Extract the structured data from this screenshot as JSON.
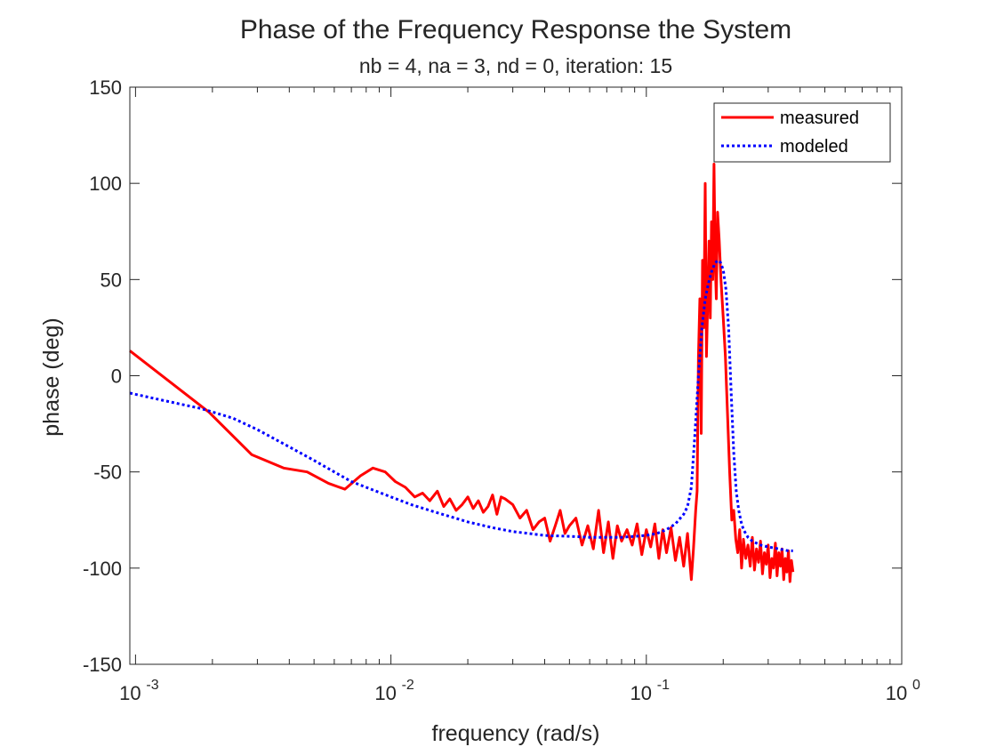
{
  "chart_data": {
    "type": "line",
    "title": "Phase of the Frequency Response the System",
    "subtitle": "nb = 4, na = 3, nd = 0, iteration: 15",
    "xlabel": "frequency (rad/s)",
    "ylabel": "phase (deg)",
    "xscale": "log",
    "xlim": [
      0.00095,
      1
    ],
    "ylim": [
      -150,
      150
    ],
    "x_ticks": [
      {
        "value": 0.001,
        "base": "10",
        "exp": "-3"
      },
      {
        "value": 0.01,
        "base": "10",
        "exp": "-2"
      },
      {
        "value": 0.1,
        "base": "10",
        "exp": "-1"
      },
      {
        "value": 1,
        "base": "10",
        "exp": "0"
      }
    ],
    "y_ticks": [
      150,
      100,
      50,
      0,
      -50,
      -100,
      -150
    ],
    "grid": false,
    "legend": {
      "placement": "top-right",
      "entries": [
        "measured",
        "modeled"
      ]
    },
    "colors": {
      "measured": "#ff0000",
      "modeled": "#0000ff",
      "axis": "#262626"
    },
    "series": [
      {
        "name": "measured",
        "style": "solid",
        "x": [
          0.00095,
          0.00194,
          0.00285,
          0.0038,
          0.0047,
          0.0057,
          0.0066,
          0.0076,
          0.0085,
          0.0095,
          0.0104,
          0.0114,
          0.0124,
          0.0133,
          0.0142,
          0.0152,
          0.0161,
          0.017,
          0.018,
          0.019,
          0.02,
          0.021,
          0.022,
          0.023,
          0.024,
          0.025,
          0.026,
          0.027,
          0.028,
          0.03,
          0.032,
          0.034,
          0.036,
          0.038,
          0.04,
          0.042,
          0.044,
          0.046,
          0.048,
          0.05,
          0.053,
          0.056,
          0.059,
          0.062,
          0.065,
          0.068,
          0.071,
          0.074,
          0.077,
          0.08,
          0.084,
          0.088,
          0.092,
          0.096,
          0.1,
          0.104,
          0.108,
          0.112,
          0.116,
          0.12,
          0.125,
          0.13,
          0.135,
          0.14,
          0.145,
          0.15,
          0.153,
          0.156,
          0.158,
          0.16,
          0.162,
          0.164,
          0.166,
          0.168,
          0.17,
          0.172,
          0.174,
          0.176,
          0.178,
          0.18,
          0.182,
          0.184,
          0.186,
          0.188,
          0.19,
          0.193,
          0.196,
          0.2,
          0.204,
          0.208,
          0.212,
          0.216,
          0.22,
          0.224,
          0.228,
          0.232,
          0.236,
          0.24,
          0.245,
          0.25,
          0.255,
          0.26,
          0.265,
          0.27,
          0.275,
          0.28,
          0.285,
          0.29,
          0.295,
          0.3,
          0.305,
          0.31,
          0.315,
          0.32,
          0.325,
          0.33,
          0.335,
          0.34,
          0.345,
          0.35,
          0.355,
          0.36,
          0.365,
          0.37,
          0.375
        ],
        "y": [
          13,
          -19,
          -41,
          -48,
          -50,
          -56,
          -59,
          -52,
          -48,
          -50,
          -55,
          -58,
          -63,
          -61,
          -65,
          -60,
          -68,
          -64,
          -70,
          -67,
          -63,
          -69,
          -65,
          -71,
          -68,
          -62,
          -72,
          -63,
          -64,
          -67,
          -74,
          -70,
          -80,
          -76,
          -74,
          -86,
          -78,
          -70,
          -82,
          -78,
          -74,
          -88,
          -78,
          -90,
          -70,
          -92,
          -76,
          -95,
          -78,
          -86,
          -80,
          -88,
          -77,
          -93,
          -80,
          -89,
          -77,
          -95,
          -80,
          -92,
          -79,
          -96,
          -84,
          -99,
          -82,
          -106,
          -90,
          -70,
          -60,
          10,
          40,
          -30,
          60,
          25,
          100,
          10,
          40,
          70,
          30,
          80,
          50,
          110,
          60,
          40,
          85,
          70,
          50,
          30,
          10,
          -20,
          -50,
          -75,
          -70,
          -85,
          -92,
          -80,
          -100,
          -85,
          -95,
          -88,
          -99,
          -84,
          -101,
          -90,
          -97,
          -86,
          -103,
          -92,
          -98,
          -88,
          -105,
          -95,
          -100,
          -87,
          -104,
          -92,
          -99,
          -90,
          -106,
          -95,
          -102,
          -91,
          -107,
          -96,
          -102
        ]
      },
      {
        "name": "modeled",
        "style": "dotted",
        "x": [
          0.00095,
          0.0013,
          0.0018,
          0.0024,
          0.003,
          0.004,
          0.005,
          0.006,
          0.007,
          0.008,
          0.01,
          0.012,
          0.015,
          0.02,
          0.025,
          0.03,
          0.04,
          0.05,
          0.06,
          0.07,
          0.08,
          0.09,
          0.1,
          0.11,
          0.12,
          0.13,
          0.14,
          0.145,
          0.15,
          0.155,
          0.16,
          0.165,
          0.17,
          0.175,
          0.18,
          0.185,
          0.19,
          0.195,
          0.2,
          0.205,
          0.21,
          0.215,
          0.22,
          0.225,
          0.23,
          0.235,
          0.24,
          0.25,
          0.26,
          0.28,
          0.3,
          0.33,
          0.36,
          0.375
        ],
        "y": [
          -9,
          -13,
          -17,
          -22,
          -28,
          -37,
          -44,
          -50,
          -55,
          -58,
          -63,
          -67,
          -71,
          -76,
          -79,
          -81,
          -83,
          -83.5,
          -84,
          -84,
          -84,
          -83.5,
          -83,
          -82,
          -80,
          -77,
          -72,
          -68,
          -58,
          -30,
          0,
          25,
          40,
          48,
          54,
          58,
          60,
          59,
          55,
          45,
          25,
          -10,
          -40,
          -60,
          -70,
          -76,
          -80,
          -84,
          -86,
          -88,
          -89,
          -90,
          -91,
          -91
        ]
      }
    ]
  }
}
